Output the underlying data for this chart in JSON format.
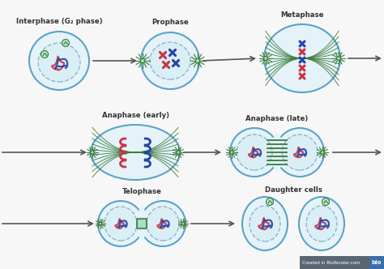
{
  "bg_color": "#f7f7f7",
  "cell_fill": "#e5f3f8",
  "cell_edge": "#5ba3c9",
  "nucleus_fill": "#daeef5",
  "nucleus_edge": "#8ab8cc",
  "green_color": "#3a7a3a",
  "green_light": "#5aaa5a",
  "red_color": "#cc3344",
  "blue_color": "#2244aa",
  "dark_green": "#2d6e2d",
  "teal": "#3a8a6a",
  "arrow_color": "#555555",
  "watermark_bg": "#5a6672",
  "watermark_blue": "#3a6faa",
  "watermark_text": "Created in BioRender.com",
  "watermark_bio": "bio",
  "stages": [
    "Interphase (G₂ phase)",
    "Prophase",
    "Metaphase",
    "Anaphase (early)",
    "Anaphase (late)",
    "Telophase",
    "Daughter cells"
  ]
}
